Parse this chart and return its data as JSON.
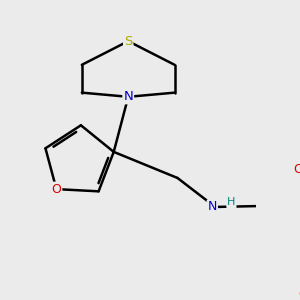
{
  "background_color": "#ebebeb",
  "atom_colors": {
    "C": "#000000",
    "N": "#0000cc",
    "O": "#dd0000",
    "S": "#aaaa00",
    "H": "#008080"
  },
  "bond_color": "#000000",
  "bond_width": 1.8,
  "figsize": [
    3.0,
    3.0
  ],
  "dpi": 100
}
